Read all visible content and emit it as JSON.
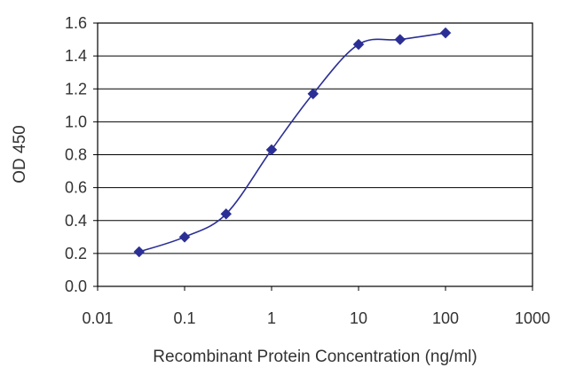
{
  "chart_data": {
    "type": "line",
    "xlabel": "Recombinant Protein Concentration (ng/ml)",
    "ylabel": "OD 450",
    "xscale": "log",
    "xlim": [
      0.01,
      1000
    ],
    "ylim": [
      0.0,
      1.6
    ],
    "grid": "horizontal",
    "x_ticks": [
      "0.01",
      "0.1",
      "1",
      "10",
      "100",
      "1000"
    ],
    "x_tick_values": [
      0.01,
      0.1,
      1,
      10,
      100,
      1000
    ],
    "y_ticks": [
      "0.0",
      "0.2",
      "0.4",
      "0.6",
      "0.8",
      "1.0",
      "1.2",
      "1.4",
      "1.6"
    ],
    "y_tick_values": [
      0.0,
      0.2,
      0.4,
      0.6,
      0.8,
      1.0,
      1.2,
      1.4,
      1.6
    ],
    "series": [
      {
        "x": [
          0.03,
          0.1,
          0.3,
          1,
          3,
          10,
          30,
          100
        ],
        "y": [
          0.21,
          0.3,
          0.44,
          0.83,
          1.17,
          1.47,
          1.5,
          1.54
        ],
        "color": "#2b2f95",
        "marker": "diamond"
      }
    ]
  }
}
